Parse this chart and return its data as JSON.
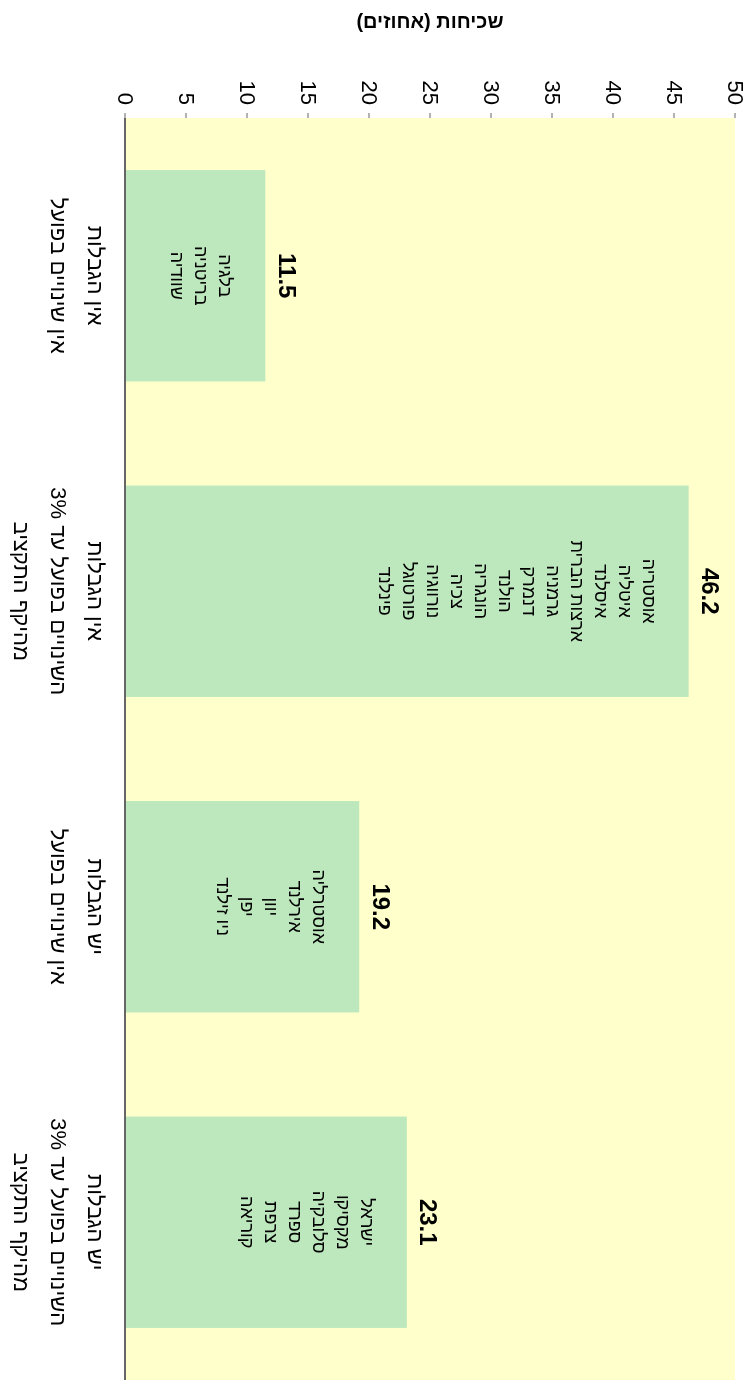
{
  "chart_data": {
    "type": "bar",
    "orientation": "horizontal",
    "xlabel": "שכיחות (אחוזים)",
    "categories": [
      "אין הגבלות\nאין שינויים בפועל",
      "אין הגבלות\nהשינויים בפועל עד 3%\nמהיקף התקציב",
      "יש הגבלות\nאין שינויים בפועל",
      "יש הגבלות\nהשינויים בפועל עד 3%\nמהיקף התקציב"
    ],
    "values": [
      11.5,
      46.2,
      19.2,
      23.1
    ],
    "color": "#bde8bd",
    "data_labels": true,
    "xlim": [
      0,
      50
    ],
    "xticks": [
      0,
      5,
      10,
      15,
      20,
      25,
      30,
      35,
      40,
      45,
      50
    ],
    "grid": false,
    "annotations": [
      "בלגיה\nבריטניה\nשוודיה",
      "אוסטריה\nאיטליה\nאיסלנד\nארצות הברית\nגרמניה\nדנמרק\nהולנד\nהונגריה\nצכיה\nנורווגיה\nפורטוגל\nפינלנד",
      "אוסטרליה\nאירלנד\nיוון\nיפן\nניו זילנד",
      "ישראל\nמקסיקו\nסלובקיה\nספרד\nצרפת\nקוריאה"
    ]
  }
}
